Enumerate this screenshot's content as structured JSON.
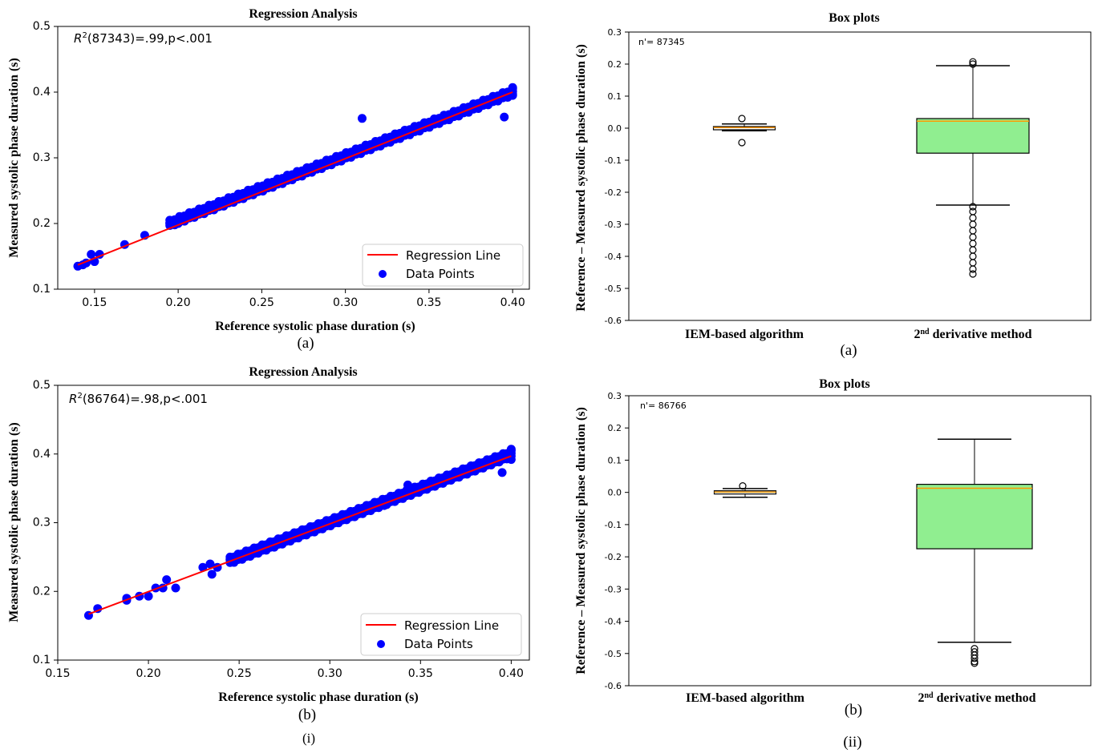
{
  "captions": {
    "left": "(i)",
    "right": "(ii)"
  },
  "chart_data": [
    {
      "id": "reg_a",
      "type": "scatter",
      "title": "Regression Analysis",
      "xlabel": "Reference systolic phase duration (s)",
      "ylabel": "Measured systolic phase duration (s)",
      "xlim": [
        0.128,
        0.41
      ],
      "ylim": [
        0.1,
        0.5
      ],
      "xticks": [
        "0.15",
        "0.20",
        "0.25",
        "0.30",
        "0.35",
        "0.40"
      ],
      "xtick_values": [
        0.15,
        0.2,
        0.25,
        0.3,
        0.35,
        0.4
      ],
      "yticks": [
        "0.1",
        "0.2",
        "0.3",
        "0.4",
        "0.5"
      ],
      "ytick_values": [
        0.1,
        0.2,
        0.3,
        0.4,
        0.5
      ],
      "annotation_r2": "R",
      "annotation_sup": "2",
      "annotation_rest": "(87343)=.99,p<.001",
      "legend": [
        "Regression Line",
        "Data Points"
      ],
      "legend_position": "lower-right",
      "regression_line": {
        "x": [
          0.14,
          0.4
        ],
        "y": [
          0.137,
          0.4
        ]
      },
      "band": {
        "x_start": 0.195,
        "x_end": 0.4,
        "y_start": 0.2,
        "y_end": 0.4
      },
      "points": [
        [
          0.14,
          0.135
        ],
        [
          0.143,
          0.137
        ],
        [
          0.145,
          0.14
        ],
        [
          0.148,
          0.153
        ],
        [
          0.15,
          0.142
        ],
        [
          0.153,
          0.153
        ],
        [
          0.168,
          0.168
        ],
        [
          0.18,
          0.182
        ],
        [
          0.195,
          0.2
        ],
        [
          0.2,
          0.2
        ],
        [
          0.31,
          0.36
        ],
        [
          0.395,
          0.362
        ],
        [
          0.4,
          0.407
        ],
        [
          0.4,
          0.395
        ]
      ],
      "series_color": "#0000ff",
      "line_color": "#ff0000",
      "caption": "(a)"
    },
    {
      "id": "reg_b",
      "type": "scatter",
      "title": "Regression Analysis",
      "xlabel": "Reference systolic phase duration (s)",
      "ylabel": "Measured systolic phase duration (s)",
      "xlim": [
        0.15,
        0.41
      ],
      "ylim": [
        0.1,
        0.5
      ],
      "xticks": [
        "0.15",
        "0.20",
        "0.25",
        "0.30",
        "0.35",
        "0.40"
      ],
      "xtick_values": [
        0.15,
        0.2,
        0.25,
        0.3,
        0.35,
        0.4
      ],
      "yticks": [
        "0.1",
        "0.2",
        "0.3",
        "0.4",
        "0.5"
      ],
      "ytick_values": [
        0.1,
        0.2,
        0.3,
        0.4,
        0.5
      ],
      "annotation_r2": "R",
      "annotation_sup": "2",
      "annotation_rest": "(86764)=.98,p<.001",
      "legend": [
        "Regression Line",
        "Data Points"
      ],
      "legend_position": "lower-right",
      "regression_line": {
        "x": [
          0.167,
          0.4
        ],
        "y": [
          0.167,
          0.397
        ]
      },
      "band": {
        "x_start": 0.245,
        "x_end": 0.4,
        "y_start": 0.245,
        "y_end": 0.4
      },
      "points": [
        [
          0.167,
          0.165
        ],
        [
          0.172,
          0.175
        ],
        [
          0.188,
          0.19
        ],
        [
          0.188,
          0.187
        ],
        [
          0.195,
          0.193
        ],
        [
          0.2,
          0.193
        ],
        [
          0.204,
          0.205
        ],
        [
          0.208,
          0.205
        ],
        [
          0.21,
          0.217
        ],
        [
          0.215,
          0.205
        ],
        [
          0.23,
          0.235
        ],
        [
          0.234,
          0.24
        ],
        [
          0.235,
          0.225
        ],
        [
          0.238,
          0.235
        ],
        [
          0.245,
          0.247
        ],
        [
          0.33,
          0.325
        ],
        [
          0.343,
          0.355
        ],
        [
          0.395,
          0.373
        ],
        [
          0.4,
          0.407
        ],
        [
          0.4,
          0.392
        ]
      ],
      "series_color": "#0000ff",
      "line_color": "#ff0000",
      "caption": "(b)"
    },
    {
      "id": "box_a",
      "type": "box",
      "title": "Box plots",
      "ylabel": "Reference – Measured systolic phase duration (s)",
      "ylim": [
        -0.6,
        0.3
      ],
      "yticks": [
        "0.3",
        "0.2",
        "0.1",
        "0.0",
        "-0.1",
        "-0.2",
        "-0.3",
        "-0.4",
        "-0.5",
        "-0.6"
      ],
      "ytick_values": [
        0.3,
        0.2,
        0.1,
        0.0,
        -0.1,
        -0.2,
        -0.3,
        -0.4,
        -0.5,
        -0.6
      ],
      "n_label": "n'= 87345",
      "categories": [
        "IEM-based algorithm",
        "derivative method"
      ],
      "cat2_prefix": "2",
      "cat2_sup": "nd",
      "boxes": [
        {
          "whisker_low": -0.008,
          "q1": -0.005,
          "median": 0.002,
          "q3": 0.005,
          "whisker_high": 0.013,
          "outliers": [
            0.03,
            -0.045
          ],
          "fill": "#ffffff"
        },
        {
          "whisker_low": -0.24,
          "q1": -0.078,
          "median": 0.022,
          "q3": 0.03,
          "whisker_high": 0.195,
          "outliers": [
            0.2,
            0.207,
            -0.245,
            -0.26,
            -0.28,
            -0.3,
            -0.32,
            -0.34,
            -0.36,
            -0.38,
            -0.4,
            -0.42,
            -0.44,
            -0.455
          ],
          "fill": "#90ee90"
        }
      ],
      "median_color": "#ff9900",
      "caption": "(a)"
    },
    {
      "id": "box_b",
      "type": "box",
      "title": "Box plots",
      "ylabel": "Reference – Measured systolic phase duration (s)",
      "ylim": [
        -0.6,
        0.3
      ],
      "yticks": [
        "0.3",
        "0.2",
        "0.1",
        "0.0",
        "-0.1",
        "-0.2",
        "-0.3",
        "-0.4",
        "-0.5",
        "-0.6"
      ],
      "ytick_values": [
        0.3,
        0.2,
        0.1,
        0.0,
        -0.1,
        -0.2,
        -0.3,
        -0.4,
        -0.5,
        -0.6
      ],
      "n_label": "n'= 86766",
      "categories": [
        "IEM-based algorithm",
        "derivative method"
      ],
      "cat2_prefix": "2",
      "cat2_sup": "nd",
      "boxes": [
        {
          "whisker_low": -0.015,
          "q1": -0.005,
          "median": 0.001,
          "q3": 0.005,
          "whisker_high": 0.012,
          "outliers": [
            0.02
          ],
          "fill": "#ffffff"
        },
        {
          "whisker_low": -0.465,
          "q1": -0.175,
          "median": 0.013,
          "q3": 0.025,
          "whisker_high": 0.165,
          "outliers": [
            -0.485,
            -0.495,
            -0.505,
            -0.515,
            -0.525,
            -0.53
          ],
          "fill": "#90ee90"
        }
      ],
      "median_color": "#ff9900",
      "caption": "(b)"
    }
  ]
}
